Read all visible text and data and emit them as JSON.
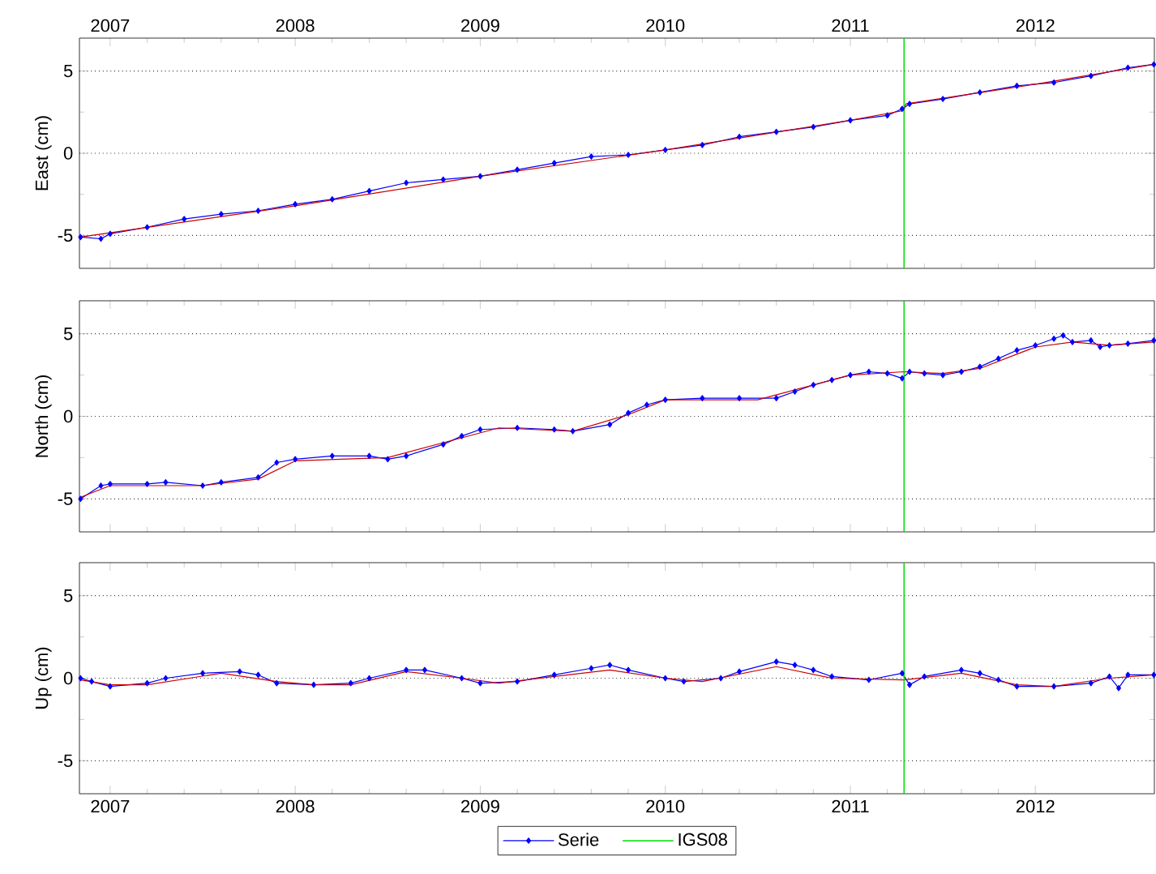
{
  "chart_data": [
    {
      "type": "line",
      "ylabel": "East (cm)",
      "xlim": [
        2006.834,
        2012.643
      ],
      "xticks": [
        2007,
        2008,
        2009,
        2010,
        2011,
        2012
      ],
      "ylim": [
        -7,
        7
      ],
      "yticks": [
        -5,
        0,
        5
      ],
      "grid": "y",
      "series": [
        {
          "color": "#0000ff",
          "marker": "diamond",
          "line_style": "solid",
          "x": [
            2006.84,
            2006.95,
            2007.0,
            2007.2,
            2007.4,
            2007.6,
            2007.8,
            2008.0,
            2008.2,
            2008.4,
            2008.6,
            2008.8,
            2009.0,
            2009.2,
            2009.4,
            2009.6,
            2009.8,
            2010.0,
            2010.2,
            2010.4,
            2010.6,
            2010.8,
            2011.0,
            2011.2,
            2011.28,
            2011.32,
            2011.5,
            2011.7,
            2011.9,
            2012.1,
            2012.3,
            2012.5,
            2012.64
          ],
          "values": [
            -5.1,
            -5.2,
            -4.9,
            -4.5,
            -4.0,
            -3.7,
            -3.5,
            -3.1,
            -2.8,
            -2.3,
            -1.8,
            -1.6,
            -1.4,
            -1.0,
            -0.6,
            -0.2,
            -0.1,
            0.2,
            0.5,
            1.0,
            1.3,
            1.6,
            2.0,
            2.3,
            2.7,
            3.0,
            3.3,
            3.7,
            4.1,
            4.3,
            4.7,
            5.2,
            5.4
          ]
        },
        {
          "type": "line",
          "color": "#cc0000",
          "marker": "none",
          "line_style": "solid",
          "x": [
            2006.84,
            2008.0,
            2009.0,
            2010.0,
            2011.0,
            2011.29,
            2011.3,
            2012.0,
            2012.64
          ],
          "values": [
            -5.1,
            -3.2,
            -1.4,
            0.2,
            2.0,
            2.6,
            3.0,
            4.2,
            5.4
          ]
        }
      ],
      "ref_lines": [
        {
          "axis": "x",
          "value": 2011.29,
          "color": "#00dd00"
        }
      ]
    },
    {
      "type": "line",
      "ylabel": "North (cm)",
      "xlim": [
        2006.834,
        2012.643
      ],
      "xticks": [
        2007,
        2008,
        2009,
        2010,
        2011,
        2012
      ],
      "tick_labels": "y",
      "ylim": [
        -7,
        7
      ],
      "yticks": [
        -5,
        0,
        5
      ],
      "grid": "y",
      "series": [
        {
          "color": "#0000ff",
          "marker": "diamond",
          "line_style": "solid",
          "x": [
            2006.84,
            2006.95,
            2007.0,
            2007.2,
            2007.3,
            2007.5,
            2007.6,
            2007.8,
            2007.9,
            2008.0,
            2008.2,
            2008.4,
            2008.5,
            2008.6,
            2008.8,
            2008.9,
            2009.0,
            2009.2,
            2009.4,
            2009.5,
            2009.7,
            2009.8,
            2009.9,
            2010.0,
            2010.2,
            2010.4,
            2010.6,
            2010.7,
            2010.8,
            2010.9,
            2011.0,
            2011.1,
            2011.2,
            2011.28,
            2011.32,
            2011.4,
            2011.5,
            2011.6,
            2011.7,
            2011.8,
            2011.9,
            2012.0,
            2012.1,
            2012.15,
            2012.2,
            2012.3,
            2012.35,
            2012.4,
            2012.5,
            2012.64
          ],
          "values": [
            -5.0,
            -4.2,
            -4.1,
            -4.1,
            -4.0,
            -4.2,
            -4.0,
            -3.7,
            -2.8,
            -2.6,
            -2.4,
            -2.4,
            -2.6,
            -2.4,
            -1.7,
            -1.2,
            -0.8,
            -0.7,
            -0.8,
            -0.9,
            -0.5,
            0.2,
            0.7,
            1.0,
            1.1,
            1.1,
            1.1,
            1.5,
            1.9,
            2.2,
            2.5,
            2.7,
            2.6,
            2.3,
            2.7,
            2.6,
            2.5,
            2.7,
            3.0,
            3.5,
            4.0,
            4.3,
            4.7,
            4.9,
            4.5,
            4.6,
            4.2,
            4.3,
            4.4,
            4.6
          ]
        },
        {
          "type": "line",
          "color": "#cc0000",
          "marker": "none",
          "line_style": "solid",
          "x": [
            2006.84,
            2007.0,
            2007.5,
            2007.8,
            2008.0,
            2008.5,
            2008.9,
            2009.1,
            2009.5,
            2009.8,
            2010.0,
            2010.5,
            2011.0,
            2011.29,
            2011.5,
            2011.7,
            2012.0,
            2012.2,
            2012.4,
            2012.64
          ],
          "values": [
            -4.9,
            -4.2,
            -4.2,
            -3.8,
            -2.7,
            -2.5,
            -1.3,
            -0.7,
            -0.9,
            0.1,
            1.0,
            1.0,
            2.5,
            2.7,
            2.6,
            2.9,
            4.2,
            4.5,
            4.3,
            4.5
          ]
        }
      ],
      "ref_lines": [
        {
          "axis": "x",
          "value": 2011.29,
          "color": "#00dd00"
        }
      ]
    },
    {
      "type": "line",
      "ylabel": "Up (cm)",
      "xlim": [
        2006.834,
        2012.643
      ],
      "xticks": [
        2007,
        2008,
        2009,
        2010,
        2011,
        2012
      ],
      "ylim": [
        -7,
        7
      ],
      "yticks": [
        -5,
        0,
        5
      ],
      "grid": "y",
      "legend": "bottom",
      "series": [
        {
          "name": "Serie",
          "color": "#0000ff",
          "marker": "diamond",
          "line_style": "solid",
          "x": [
            2006.84,
            2006.9,
            2007.0,
            2007.2,
            2007.3,
            2007.5,
            2007.7,
            2007.8,
            2007.9,
            2008.1,
            2008.3,
            2008.4,
            2008.6,
            2008.7,
            2008.9,
            2009.0,
            2009.2,
            2009.4,
            2009.6,
            2009.7,
            2009.8,
            2010.0,
            2010.1,
            2010.3,
            2010.4,
            2010.6,
            2010.7,
            2010.8,
            2010.9,
            2011.1,
            2011.28,
            2011.32,
            2011.4,
            2011.6,
            2011.7,
            2011.8,
            2011.9,
            2012.1,
            2012.3,
            2012.4,
            2012.45,
            2012.5,
            2012.64
          ],
          "values": [
            0.0,
            -0.2,
            -0.5,
            -0.3,
            0.0,
            0.3,
            0.4,
            0.2,
            -0.3,
            -0.4,
            -0.3,
            0.0,
            0.5,
            0.5,
            0.0,
            -0.3,
            -0.2,
            0.2,
            0.6,
            0.8,
            0.5,
            0.0,
            -0.2,
            0.0,
            0.4,
            1.0,
            0.8,
            0.5,
            0.1,
            -0.1,
            0.3,
            -0.4,
            0.1,
            0.5,
            0.3,
            -0.1,
            -0.5,
            -0.5,
            -0.3,
            0.1,
            -0.6,
            0.2,
            0.2
          ]
        },
        {
          "type": "line",
          "color": "#cc0000",
          "marker": "none",
          "line_style": "solid",
          "x": [
            2006.84,
            2007.0,
            2007.2,
            2007.6,
            2007.9,
            2008.1,
            2008.3,
            2008.6,
            2008.9,
            2009.1,
            2009.4,
            2009.7,
            2010.0,
            2010.2,
            2010.6,
            2010.9,
            2011.29,
            2011.6,
            2011.9,
            2012.1,
            2012.4,
            2012.64
          ],
          "values": [
            -0.1,
            -0.4,
            -0.4,
            0.3,
            -0.2,
            -0.4,
            -0.4,
            0.4,
            0.0,
            -0.3,
            0.1,
            0.5,
            0.0,
            -0.2,
            0.7,
            0.0,
            -0.1,
            0.3,
            -0.4,
            -0.5,
            0.0,
            0.2
          ]
        }
      ],
      "ref_lines": [
        {
          "axis": "x",
          "value": 2011.29,
          "color": "#00dd00",
          "label": "IGS08"
        }
      ]
    }
  ]
}
